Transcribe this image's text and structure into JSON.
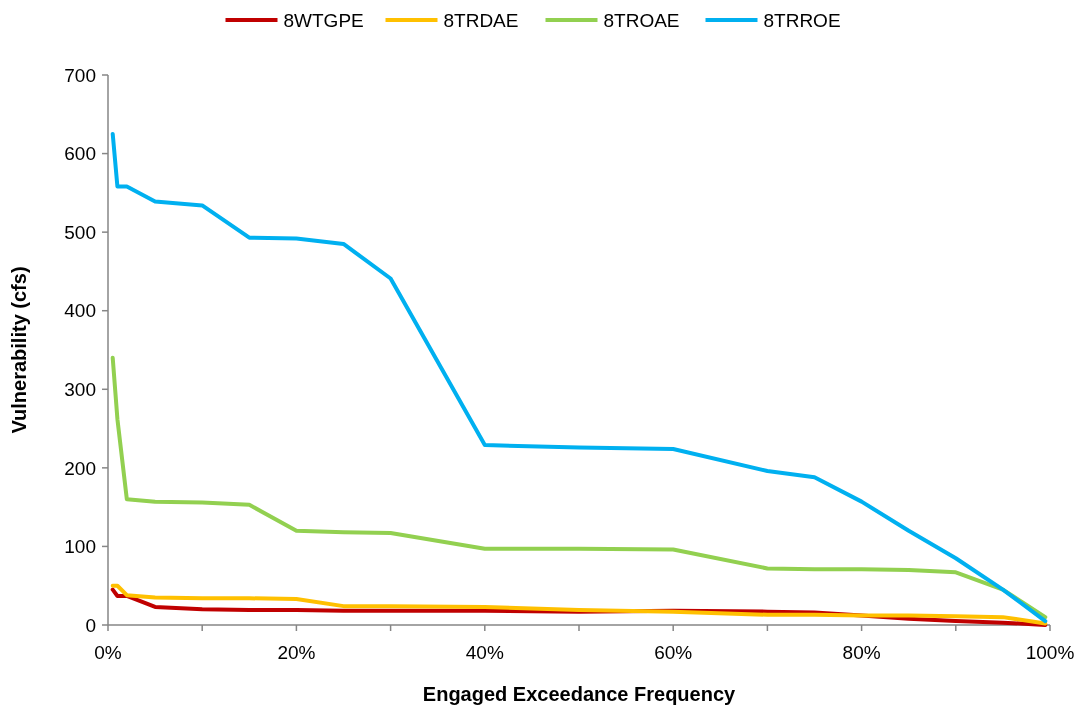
{
  "chart_data": {
    "type": "line",
    "xlabel": "Engaged Exceedance Frequency",
    "ylabel": "Vulnerability (cfs)",
    "x": [
      0.5,
      1,
      2,
      5,
      10,
      15,
      20,
      25,
      30,
      40,
      50,
      60,
      70,
      75,
      80,
      85,
      90,
      95,
      99.5
    ],
    "series": [
      {
        "name": "8WTGPE",
        "color": "#c00000",
        "values": [
          45,
          37,
          37,
          23,
          20,
          19,
          19,
          18,
          18,
          18,
          17,
          18,
          17,
          16,
          12,
          8,
          5,
          3,
          0
        ]
      },
      {
        "name": "8TRDAE",
        "color": "#ffc000",
        "values": [
          50,
          50,
          38,
          35,
          34,
          34,
          33,
          24,
          24,
          23,
          19,
          17,
          13,
          13,
          12,
          12,
          11,
          10,
          2
        ]
      },
      {
        "name": "8TROAE",
        "color": "#92d050",
        "values": [
          340,
          262,
          160,
          157,
          156,
          153,
          120,
          118,
          117,
          97,
          97,
          96,
          72,
          71,
          71,
          70,
          67,
          45,
          10
        ]
      },
      {
        "name": "8TRROE",
        "color": "#00b0f0",
        "values": [
          625,
          558,
          558,
          539,
          534,
          493,
          492,
          485,
          441,
          229,
          226,
          224,
          196,
          188,
          157,
          120,
          85,
          45,
          5
        ]
      }
    ],
    "xlim": [
      0,
      100
    ],
    "xticks": [
      {
        "value": 0,
        "label": "0%"
      },
      {
        "value": 10,
        "label": null
      },
      {
        "value": 20,
        "label": "20%"
      },
      {
        "value": 30,
        "label": null
      },
      {
        "value": 40,
        "label": "40%"
      },
      {
        "value": 50,
        "label": null
      },
      {
        "value": 60,
        "label": "60%"
      },
      {
        "value": 70,
        "label": null
      },
      {
        "value": 80,
        "label": "80%"
      },
      {
        "value": 90,
        "label": null
      },
      {
        "value": 100,
        "label": "100%"
      }
    ],
    "ylim": [
      0,
      700
    ],
    "yticks": [
      0,
      100,
      200,
      300,
      400,
      500,
      600,
      700
    ],
    "legend": "top",
    "grid": false,
    "marker": "none",
    "line_style": "solid"
  }
}
